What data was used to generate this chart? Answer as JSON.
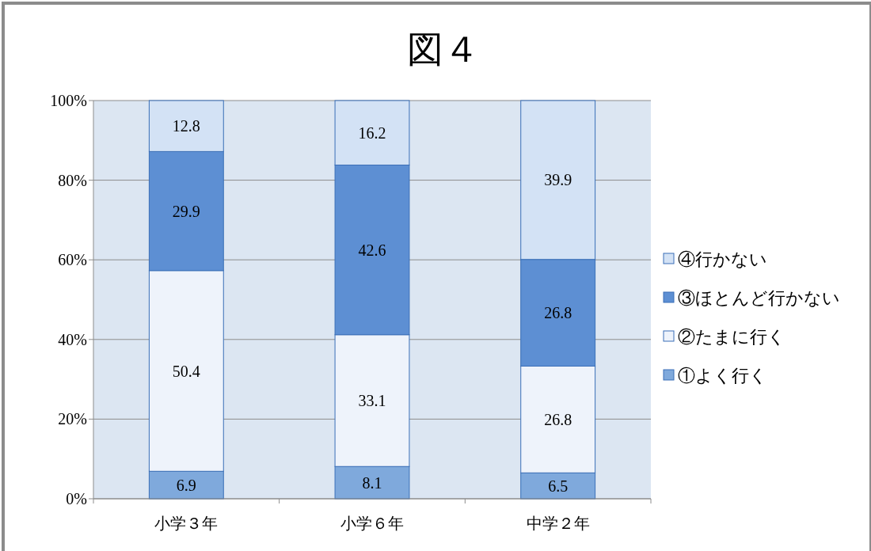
{
  "chart_data": {
    "type": "bar",
    "title": "図４",
    "stacked": true,
    "categories": [
      "小学３年",
      "小学６年",
      "中学２年"
    ],
    "series": [
      {
        "name": "①よく行く",
        "color": "#7fa9dc",
        "values": [
          6.9,
          8.1,
          6.5
        ]
      },
      {
        "name": "②たまに行く",
        "color": "#eef3fb",
        "values": [
          50.4,
          33.1,
          26.8
        ]
      },
      {
        "name": "③ほとんど行かない",
        "color": "#5d8fd3",
        "values": [
          29.9,
          42.6,
          26.8
        ]
      },
      {
        "name": "④行かない",
        "color": "#d3e2f5",
        "values": [
          12.8,
          16.2,
          39.9
        ]
      }
    ],
    "ylim": [
      0,
      100
    ],
    "yticks": [
      {
        "value": 0,
        "label": "0%"
      },
      {
        "value": 20,
        "label": "20%"
      },
      {
        "value": 40,
        "label": "40%"
      },
      {
        "value": 60,
        "label": "60%"
      },
      {
        "value": 80,
        "label": "80%"
      },
      {
        "value": 100,
        "label": "100%"
      }
    ],
    "grid": "y",
    "legend": "right",
    "data_labels": true
  }
}
